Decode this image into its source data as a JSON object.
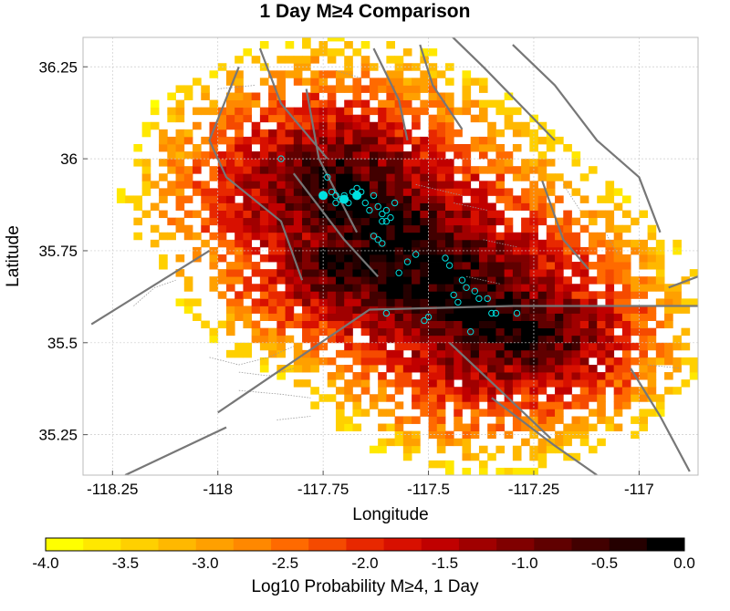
{
  "chart_data": {
    "type": "heatmap",
    "title": "1 Day M≥4 Comparison",
    "xlabel": "Longitude",
    "ylabel": "Latitude",
    "xlim": [
      -118.32,
      -116.86
    ],
    "ylim": [
      35.14,
      36.33
    ],
    "x_ticks": [
      -118.25,
      -118,
      -117.75,
      -117.5,
      -117.25,
      -117
    ],
    "x_tick_labels": [
      "-118.25",
      "-118",
      "-117.75",
      "-117.5",
      "-117.25",
      "-117"
    ],
    "y_ticks": [
      35.25,
      35.5,
      35.75,
      36,
      36.25
    ],
    "y_tick_labels": [
      "35.25",
      "35.5",
      "35.75",
      "36",
      "36.25"
    ],
    "grid": true,
    "colorbar": {
      "label": "Log10 Probability M≥4, 1 Day",
      "min": -4.0,
      "max": 0.0,
      "ticks": [
        -4.0,
        -3.5,
        -3.0,
        -2.5,
        -2.0,
        -1.5,
        -1.0,
        -0.5,
        0.0
      ],
      "tick_labels": [
        "-4.0",
        "-3.5",
        "-3.0",
        "-2.5",
        "-2.0",
        "-1.5",
        "-1.0",
        "-0.5",
        "0.0"
      ],
      "colors": [
        "#ffff00",
        "#ffe800",
        "#ffd000",
        "#ffb800",
        "#ffa000",
        "#ff8800",
        "#ff6a00",
        "#f54a00",
        "#e82800",
        "#d81000",
        "#c00000",
        "#a00000",
        "#800000",
        "#600000",
        "#420000",
        "#250000",
        "#000000"
      ]
    },
    "grid_resolution_deg": 0.02,
    "rupture_axis": {
      "lon1": -117.72,
      "lat1": 35.92,
      "lon2": -117.35,
      "lat2": 35.56
    },
    "second_axis": {
      "lon1": -117.7,
      "lat1": 35.72,
      "lon2": -117.25,
      "lat2": 35.52
    },
    "core_value": 0.0,
    "edge_value": -4.0,
    "earthquake_marker_color": "#00e0e0",
    "earthquakes": [
      {
        "lon": -117.85,
        "lat": 36.0
      },
      {
        "lon": -117.73,
        "lat": 35.91
      },
      {
        "lon": -117.72,
        "lat": 35.9
      },
      {
        "lon": -117.71,
        "lat": 35.89
      },
      {
        "lon": -117.72,
        "lat": 35.88
      },
      {
        "lon": -117.7,
        "lat": 35.9
      },
      {
        "lon": -117.69,
        "lat": 35.88
      },
      {
        "lon": -117.68,
        "lat": 35.91
      },
      {
        "lon": -117.67,
        "lat": 35.92
      },
      {
        "lon": -117.66,
        "lat": 35.91
      },
      {
        "lon": -117.65,
        "lat": 35.88
      },
      {
        "lon": -117.64,
        "lat": 35.86
      },
      {
        "lon": -117.63,
        "lat": 35.9
      },
      {
        "lon": -117.62,
        "lat": 35.87
      },
      {
        "lon": -117.61,
        "lat": 35.85
      },
      {
        "lon": -117.6,
        "lat": 35.86
      },
      {
        "lon": -117.6,
        "lat": 35.83
      },
      {
        "lon": -117.61,
        "lat": 35.83
      },
      {
        "lon": -117.58,
        "lat": 35.88
      },
      {
        "lon": -117.59,
        "lat": 35.84
      },
      {
        "lon": -117.74,
        "lat": 35.95
      },
      {
        "lon": -117.63,
        "lat": 35.79
      },
      {
        "lon": -117.62,
        "lat": 35.78
      },
      {
        "lon": -117.61,
        "lat": 35.77
      },
      {
        "lon": -117.53,
        "lat": 35.74
      },
      {
        "lon": -117.55,
        "lat": 35.72
      },
      {
        "lon": -117.57,
        "lat": 35.69
      },
      {
        "lon": -117.46,
        "lat": 35.73
      },
      {
        "lon": -117.45,
        "lat": 35.71
      },
      {
        "lon": -117.42,
        "lat": 35.67
      },
      {
        "lon": -117.41,
        "lat": 35.65
      },
      {
        "lon": -117.39,
        "lat": 35.64
      },
      {
        "lon": -117.38,
        "lat": 35.62
      },
      {
        "lon": -117.36,
        "lat": 35.62
      },
      {
        "lon": -117.44,
        "lat": 35.63
      },
      {
        "lon": -117.43,
        "lat": 35.61
      },
      {
        "lon": -117.35,
        "lat": 35.58
      },
      {
        "lon": -117.34,
        "lat": 35.58
      },
      {
        "lon": -117.29,
        "lat": 35.58
      },
      {
        "lon": -117.5,
        "lat": 35.57
      },
      {
        "lon": -117.51,
        "lat": 35.56
      },
      {
        "lon": -117.6,
        "lat": 35.58
      },
      {
        "lon": -117.4,
        "lat": 35.53
      }
    ],
    "large_events": [
      {
        "lon": -117.75,
        "lat": 35.9
      },
      {
        "lon": -117.7,
        "lat": 35.89
      },
      {
        "lon": -117.67,
        "lat": 35.9
      }
    ],
    "fault_color": "#777777",
    "faults": [
      [
        [
          -118.3,
          35.55
        ],
        [
          -118.02,
          35.75
        ]
      ],
      [
        [
          -118.0,
          35.31
        ],
        [
          -117.64,
          35.59
        ],
        [
          -117.3,
          35.6
        ],
        [
          -116.86,
          35.6
        ]
      ],
      [
        [
          -117.9,
          36.3
        ],
        [
          -117.85,
          36.15
        ],
        [
          -117.74,
          36.0
        ]
      ],
      [
        [
          -117.95,
          36.25
        ],
        [
          -118.02,
          36.05
        ],
        [
          -117.98,
          35.95
        ],
        [
          -117.85,
          35.83
        ],
        [
          -117.8,
          35.67
        ]
      ],
      [
        [
          -117.82,
          35.96
        ],
        [
          -117.7,
          35.78
        ],
        [
          -117.62,
          35.68
        ]
      ],
      [
        [
          -117.79,
          36.19
        ],
        [
          -117.76,
          36.0
        ],
        [
          -117.67,
          35.8
        ]
      ],
      [
        [
          -117.63,
          36.3
        ],
        [
          -117.57,
          36.16
        ],
        [
          -117.55,
          36.05
        ]
      ],
      [
        [
          -117.52,
          36.31
        ],
        [
          -117.49,
          36.2
        ],
        [
          -117.42,
          36.08
        ]
      ],
      [
        [
          -117.46,
          36.35
        ],
        [
          -117.37,
          36.25
        ],
        [
          -117.2,
          36.05
        ]
      ],
      [
        [
          -117.3,
          36.31
        ],
        [
          -117.2,
          36.2
        ],
        [
          -117.1,
          36.05
        ],
        [
          -117.0,
          35.95
        ],
        [
          -116.95,
          35.8
        ]
      ],
      [
        [
          -117.23,
          35.94
        ],
        [
          -117.18,
          35.78
        ],
        [
          -117.12,
          35.7
        ]
      ],
      [
        [
          -117.35,
          35.35
        ],
        [
          -117.2,
          35.22
        ],
        [
          -117.1,
          35.14
        ]
      ],
      [
        [
          -117.45,
          35.5
        ],
        [
          -117.32,
          35.36
        ],
        [
          -117.21,
          35.24
        ]
      ],
      [
        [
          -117.02,
          35.43
        ],
        [
          -116.95,
          35.3
        ],
        [
          -116.88,
          35.15
        ]
      ],
      [
        [
          -118.22,
          35.14
        ],
        [
          -117.98,
          35.27
        ]
      ],
      [
        [
          -116.93,
          35.65
        ],
        [
          -116.86,
          35.68
        ]
      ]
    ],
    "minor_fault_color": "#999999",
    "minor_faults": [
      [
        [
          -118.2,
          35.6
        ],
        [
          -118.15,
          35.65
        ],
        [
          -118.1,
          35.67
        ]
      ],
      [
        [
          -118.02,
          35.46
        ],
        [
          -117.95,
          35.44
        ],
        [
          -117.88,
          35.46
        ],
        [
          -117.82,
          35.49
        ]
      ],
      [
        [
          -117.95,
          35.42
        ],
        [
          -117.88,
          35.41
        ],
        [
          -117.82,
          35.43
        ]
      ],
      [
        [
          -117.95,
          35.37
        ],
        [
          -117.85,
          35.36
        ],
        [
          -117.78,
          35.35
        ]
      ],
      [
        [
          -117.86,
          35.29
        ],
        [
          -117.78,
          35.3
        ]
      ],
      [
        [
          -117.53,
          35.93
        ],
        [
          -117.42,
          35.9
        ]
      ],
      [
        [
          -117.44,
          35.88
        ],
        [
          -117.36,
          35.86
        ]
      ],
      [
        [
          -117.41,
          35.68
        ],
        [
          -117.33,
          35.66
        ]
      ],
      [
        [
          -117.37,
          35.78
        ],
        [
          -117.29,
          35.76
        ]
      ],
      [
        [
          -117.18,
          35.93
        ],
        [
          -117.14,
          35.86
        ]
      ],
      [
        [
          -117.08,
          35.8
        ],
        [
          -117.05,
          35.74
        ]
      ],
      [
        [
          -116.98,
          35.44
        ],
        [
          -116.9,
          35.43
        ]
      ],
      [
        [
          -118.0,
          36.19
        ],
        [
          -117.91,
          36.2
        ]
      ],
      [
        [
          -117.72,
          36.24
        ],
        [
          -117.66,
          36.22
        ]
      ]
    ]
  }
}
